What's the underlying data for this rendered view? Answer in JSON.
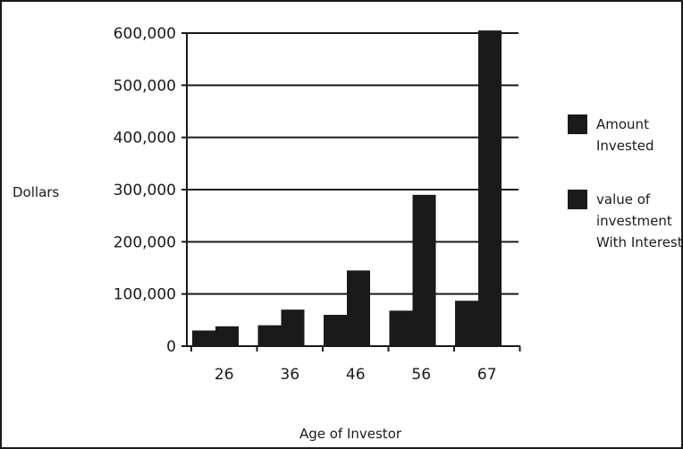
{
  "chart_data": {
    "type": "bar",
    "title": "",
    "xlabel": "Age of Investor",
    "ylabel": "Dollars",
    "categories": [
      "26",
      "36",
      "46",
      "56",
      "67"
    ],
    "series": [
      {
        "name": "Amount Invested",
        "values": [
          30000,
          40000,
          60000,
          68000,
          87000
        ]
      },
      {
        "name": "value of investment With Interest",
        "values": [
          38000,
          70000,
          145000,
          290000,
          605000
        ]
      }
    ],
    "ylim": [
      0,
      600000
    ],
    "yticks": [
      0,
      100000,
      200000,
      300000,
      400000,
      500000,
      600000
    ],
    "ytick_labels": [
      "0",
      "100,000",
      "200,000",
      "300,000",
      "400,000",
      "500,000",
      "600,000"
    ],
    "grid": true,
    "legend": {
      "position": "right",
      "entries": [
        {
          "lines": [
            "Amount",
            "Invested"
          ]
        },
        {
          "lines": [
            "value of",
            "investment",
            "With Interest"
          ]
        }
      ]
    },
    "colors": {
      "bars": "#1a1a1a",
      "grid": "#1a1a1a",
      "background": "#ffffff"
    }
  }
}
